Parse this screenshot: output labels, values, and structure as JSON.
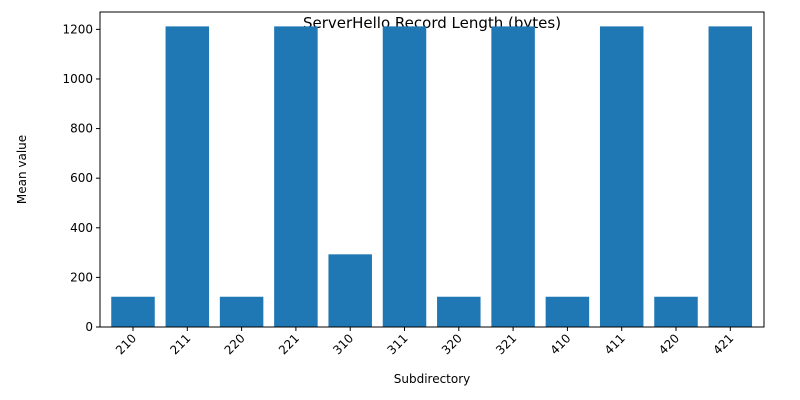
{
  "chart_data": {
    "type": "bar",
    "title": "ServerHello Record Length (bytes)",
    "xlabel": "Subdirectory",
    "ylabel": "Mean value",
    "categories": [
      "210",
      "211",
      "220",
      "221",
      "310",
      "311",
      "320",
      "321",
      "410",
      "411",
      "420",
      "421"
    ],
    "values": [
      122,
      1212,
      122,
      1212,
      293,
      1212,
      122,
      1212,
      122,
      1212,
      122,
      1212
    ],
    "ylim": [
      0,
      1270
    ],
    "yticks": [
      0,
      200,
      400,
      600,
      800,
      1000,
      1200
    ],
    "grid": false,
    "bar_color": "#1f77b4"
  }
}
